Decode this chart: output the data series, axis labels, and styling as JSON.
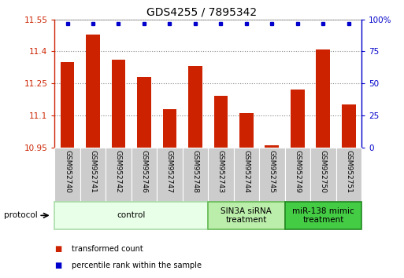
{
  "title": "GDS4255 / 7895342",
  "samples": [
    "GSM952740",
    "GSM952741",
    "GSM952742",
    "GSM952746",
    "GSM952747",
    "GSM952748",
    "GSM952743",
    "GSM952744",
    "GSM952745",
    "GSM952749",
    "GSM952750",
    "GSM952751"
  ],
  "bar_values": [
    11.35,
    11.48,
    11.36,
    11.28,
    11.13,
    11.33,
    11.19,
    11.11,
    10.96,
    11.22,
    11.41,
    11.15
  ],
  "bar_color": "#cc2200",
  "percentile_color": "#0000cc",
  "ylim_left": [
    10.95,
    11.55
  ],
  "ylim_right": [
    0,
    100
  ],
  "yticks_left": [
    10.95,
    11.1,
    11.25,
    11.4,
    11.55
  ],
  "ytick_labels_left": [
    "10.95",
    "11.1",
    "11.25",
    "11.4",
    "11.55"
  ],
  "yticks_right": [
    0,
    25,
    50,
    75,
    100
  ],
  "ytick_labels_right": [
    "0",
    "25",
    "50",
    "75",
    "100%"
  ],
  "groups": [
    {
      "label": "control",
      "start": 0,
      "end": 6,
      "color": "#e8ffe8",
      "edge_color": "#aaddaa"
    },
    {
      "label": "SIN3A siRNA\ntreatment",
      "start": 6,
      "end": 9,
      "color": "#bbeeaa",
      "edge_color": "#66bb55"
    },
    {
      "label": "miR-138 mimic\ntreatment",
      "start": 9,
      "end": 12,
      "color": "#44cc44",
      "edge_color": "#228822"
    }
  ],
  "protocol_label": "protocol",
  "legend": [
    {
      "label": "transformed count",
      "color": "#cc2200"
    },
    {
      "label": "percentile rank within the sample",
      "color": "#0000cc"
    }
  ],
  "title_fontsize": 10,
  "tick_fontsize": 7.5,
  "label_fontsize": 6.5,
  "group_fontsize": 7.5,
  "bar_width": 0.55
}
